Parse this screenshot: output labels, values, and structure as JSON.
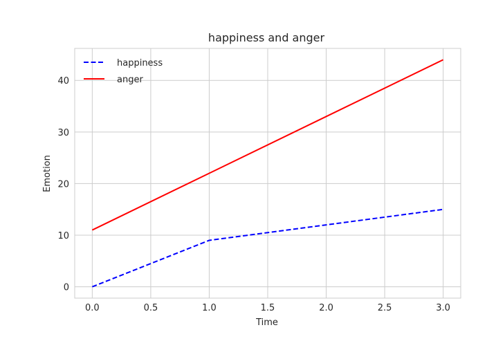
{
  "chart_data": {
    "type": "line",
    "title": "happiness and anger",
    "xlabel": "Time",
    "ylabel": "Emotion",
    "xlim": [
      -0.15,
      3.15
    ],
    "ylim": [
      -2.2,
      46.2
    ],
    "xticks": [
      "0.0",
      "0.5",
      "1.0",
      "1.5",
      "2.0",
      "2.5",
      "3.0"
    ],
    "yticks": [
      "0",
      "10",
      "20",
      "30",
      "40"
    ],
    "grid": true,
    "legend_position": "top-left",
    "series": [
      {
        "name": "happiness",
        "x": [
          0,
          1,
          2,
          3
        ],
        "values": [
          0,
          9,
          12,
          15
        ],
        "color": "#0000ff",
        "style": "dashed"
      },
      {
        "name": "anger",
        "x": [
          0,
          1,
          2,
          3
        ],
        "values": [
          11,
          22,
          33,
          44
        ],
        "color": "#ff0000",
        "style": "solid"
      }
    ]
  }
}
